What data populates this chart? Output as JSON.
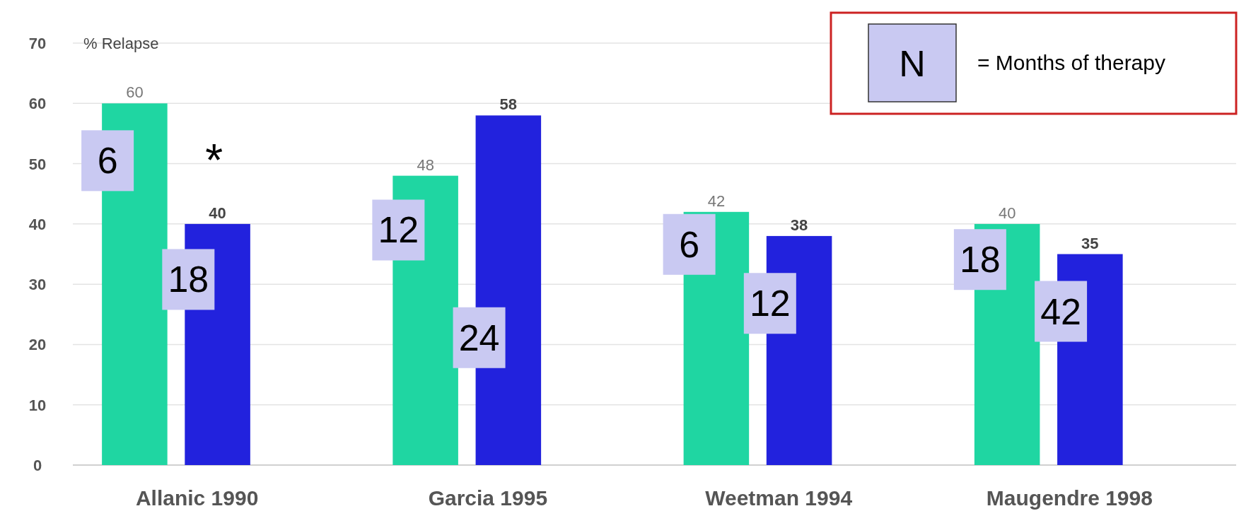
{
  "chart_data": {
    "type": "bar",
    "ylabel": "% Relapse",
    "categories": [
      "Allanic 1990",
      "Garcia 1995",
      "Weetman 1994",
      "Maugendre 1998"
    ],
    "series": [
      {
        "color": "#1fd6a2",
        "values": [
          60,
          48,
          42,
          40
        ]
      },
      {
        "color": "#2222dd",
        "values": [
          40,
          58,
          38,
          35
        ]
      }
    ],
    "ylim": [
      0,
      70
    ],
    "yticks": [
      0,
      10,
      20,
      30,
      40,
      50,
      60,
      70
    ],
    "grid": "y",
    "data_labels": true,
    "annotations": [
      "N",
      "= Months of therapy",
      "6",
      "18",
      "12",
      "24",
      "6",
      "12",
      "18",
      "42",
      "*"
    ]
  }
}
